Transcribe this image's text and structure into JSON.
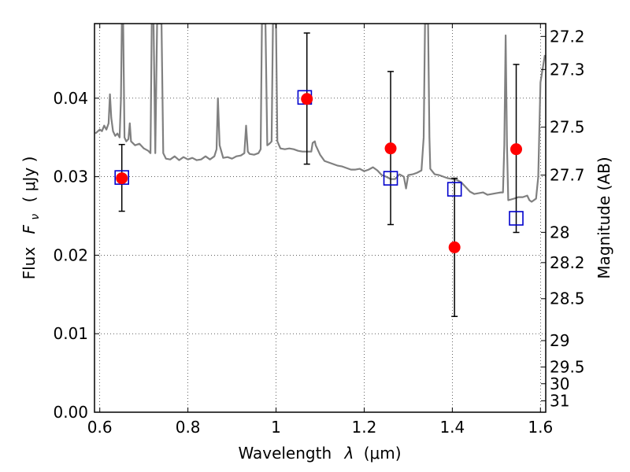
{
  "chart_data": {
    "type": "scatter",
    "xlabel_text": "Wavelength",
    "xlabel_symbol": "λ",
    "xlabel_unit": "(μm)",
    "ylabel_text": "Flux",
    "ylabel_symbol": "F",
    "ylabel_sub": "ν",
    "ylabel_unit": "( μJy )",
    "y2label": "Magnitude (AB)",
    "xlim": [
      0.588,
      1.612
    ],
    "ylim": [
      0.0,
      0.0495
    ],
    "grid": true,
    "x_ticks": [
      {
        "value": 0.6,
        "label": "0.6"
      },
      {
        "value": 0.8,
        "label": "0.8"
      },
      {
        "value": 1.0,
        "label": "1"
      },
      {
        "value": 1.2,
        "label": "1.2"
      },
      {
        "value": 1.4,
        "label": "1.4"
      },
      {
        "value": 1.6,
        "label": "1.6"
      }
    ],
    "y_ticks": [
      {
        "value": 0.0,
        "label": "0.00"
      },
      {
        "value": 0.01,
        "label": "0.01"
      },
      {
        "value": 0.02,
        "label": "0.02"
      },
      {
        "value": 0.03,
        "label": "0.03"
      },
      {
        "value": 0.04,
        "label": "0.04"
      }
    ],
    "mag_ticks": [
      {
        "mag": 27.2,
        "label": "27.2"
      },
      {
        "mag": 27.3,
        "label": "27.3"
      },
      {
        "mag": 27.5,
        "label": "27.5"
      },
      {
        "mag": 27.7,
        "label": "27.7"
      },
      {
        "mag": 28.0,
        "label": "28"
      },
      {
        "mag": 28.2,
        "label": "28.2"
      },
      {
        "mag": 28.5,
        "label": "28.5"
      },
      {
        "mag": 29.0,
        "label": "29"
      },
      {
        "mag": 29.5,
        "label": "29.5"
      },
      {
        "mag": 30.0,
        "label": "30"
      },
      {
        "mag": 31.0,
        "label": "31"
      }
    ],
    "observed": {
      "color": "#ff0000",
      "points": [
        {
          "x": 0.65,
          "y": 0.0298,
          "ylow": 0.0256,
          "yhigh": 0.0341
        },
        {
          "x": 1.07,
          "y": 0.0399,
          "ylow": 0.0316,
          "yhigh": 0.0483
        },
        {
          "x": 1.26,
          "y": 0.0336,
          "ylow": 0.0239,
          "yhigh": 0.0434
        },
        {
          "x": 1.405,
          "y": 0.021,
          "ylow": 0.0122,
          "yhigh": 0.0298
        },
        {
          "x": 1.545,
          "y": 0.0335,
          "ylow": 0.0229,
          "yhigh": 0.0443
        }
      ]
    },
    "model_points": {
      "color": "#0000cc",
      "points": [
        {
          "x": 0.65,
          "y": 0.0299
        },
        {
          "x": 1.065,
          "y": 0.0401
        },
        {
          "x": 1.26,
          "y": 0.0298
        },
        {
          "x": 1.405,
          "y": 0.0284
        },
        {
          "x": 1.545,
          "y": 0.0247
        }
      ]
    },
    "model_spectrum": {
      "color": "#808080",
      "points": [
        [
          0.59,
          0.0355
        ],
        [
          0.6,
          0.036
        ],
        [
          0.605,
          0.0358
        ],
        [
          0.61,
          0.0365
        ],
        [
          0.615,
          0.036
        ],
        [
          0.62,
          0.0368
        ],
        [
          0.623,
          0.0405
        ],
        [
          0.626,
          0.0375
        ],
        [
          0.63,
          0.0358
        ],
        [
          0.635,
          0.0352
        ],
        [
          0.64,
          0.0355
        ],
        [
          0.645,
          0.035
        ],
        [
          0.648,
          0.04
        ],
        [
          0.65,
          0.0495
        ],
        [
          0.653,
          0.0495
        ],
        [
          0.656,
          0.035
        ],
        [
          0.66,
          0.0345
        ],
        [
          0.665,
          0.0348
        ],
        [
          0.668,
          0.0368
        ],
        [
          0.671,
          0.0345
        ],
        [
          0.68,
          0.034
        ],
        [
          0.69,
          0.0342
        ],
        [
          0.7,
          0.0336
        ],
        [
          0.71,
          0.0333
        ],
        [
          0.715,
          0.033
        ],
        [
          0.718,
          0.0495
        ],
        [
          0.722,
          0.0495
        ],
        [
          0.726,
          0.033
        ],
        [
          0.73,
          0.0495
        ],
        [
          0.736,
          0.0495
        ],
        [
          0.74,
          0.0495
        ],
        [
          0.744,
          0.033
        ],
        [
          0.75,
          0.0323
        ],
        [
          0.76,
          0.0322
        ],
        [
          0.77,
          0.0326
        ],
        [
          0.78,
          0.0321
        ],
        [
          0.79,
          0.0325
        ],
        [
          0.8,
          0.0322
        ],
        [
          0.81,
          0.0324
        ],
        [
          0.82,
          0.0321
        ],
        [
          0.83,
          0.0322
        ],
        [
          0.84,
          0.0326
        ],
        [
          0.85,
          0.0322
        ],
        [
          0.86,
          0.0326
        ],
        [
          0.865,
          0.0335
        ],
        [
          0.868,
          0.04
        ],
        [
          0.872,
          0.034
        ],
        [
          0.88,
          0.0324
        ],
        [
          0.89,
          0.0325
        ],
        [
          0.9,
          0.0323
        ],
        [
          0.91,
          0.0326
        ],
        [
          0.92,
          0.0327
        ],
        [
          0.928,
          0.033
        ],
        [
          0.932,
          0.0365
        ],
        [
          0.936,
          0.0332
        ],
        [
          0.94,
          0.0329
        ],
        [
          0.95,
          0.0328
        ],
        [
          0.96,
          0.033
        ],
        [
          0.965,
          0.0335
        ],
        [
          0.968,
          0.0495
        ],
        [
          0.976,
          0.0495
        ],
        [
          0.98,
          0.034
        ],
        [
          0.985,
          0.0342
        ],
        [
          0.99,
          0.0345
        ],
        [
          0.993,
          0.0495
        ],
        [
          1.0,
          0.0495
        ],
        [
          1.003,
          0.0345
        ],
        [
          1.01,
          0.0336
        ],
        [
          1.02,
          0.0335
        ],
        [
          1.03,
          0.0336
        ],
        [
          1.04,
          0.0335
        ],
        [
          1.05,
          0.0333
        ],
        [
          1.06,
          0.0332
        ],
        [
          1.07,
          0.0332
        ],
        [
          1.08,
          0.0332
        ],
        [
          1.083,
          0.0343
        ],
        [
          1.088,
          0.0345
        ],
        [
          1.09,
          0.034
        ],
        [
          1.1,
          0.0328
        ],
        [
          1.11,
          0.032
        ],
        [
          1.12,
          0.0318
        ],
        [
          1.13,
          0.0316
        ],
        [
          1.14,
          0.0314
        ],
        [
          1.15,
          0.0313
        ],
        [
          1.16,
          0.0311
        ],
        [
          1.17,
          0.0309
        ],
        [
          1.18,
          0.0309
        ],
        [
          1.19,
          0.031
        ],
        [
          1.2,
          0.0307
        ],
        [
          1.21,
          0.0309
        ],
        [
          1.22,
          0.0312
        ],
        [
          1.23,
          0.0308
        ],
        [
          1.24,
          0.0302
        ],
        [
          1.25,
          0.03
        ],
        [
          1.26,
          0.0297
        ],
        [
          1.27,
          0.0297
        ],
        [
          1.28,
          0.0303
        ],
        [
          1.29,
          0.03
        ],
        [
          1.295,
          0.0285
        ],
        [
          1.3,
          0.0302
        ],
        [
          1.31,
          0.0303
        ],
        [
          1.32,
          0.0305
        ],
        [
          1.33,
          0.0308
        ],
        [
          1.335,
          0.035
        ],
        [
          1.338,
          0.0495
        ],
        [
          1.345,
          0.0495
        ],
        [
          1.348,
          0.035
        ],
        [
          1.35,
          0.031
        ],
        [
          1.36,
          0.0303
        ],
        [
          1.37,
          0.0302
        ],
        [
          1.38,
          0.03
        ],
        [
          1.39,
          0.0298
        ],
        [
          1.4,
          0.0297
        ],
        [
          1.41,
          0.0296
        ],
        [
          1.42,
          0.0293
        ],
        [
          1.43,
          0.0287
        ],
        [
          1.44,
          0.0281
        ],
        [
          1.45,
          0.0278
        ],
        [
          1.46,
          0.0279
        ],
        [
          1.47,
          0.028
        ],
        [
          1.48,
          0.0277
        ],
        [
          1.49,
          0.0278
        ],
        [
          1.5,
          0.0279
        ],
        [
          1.51,
          0.028
        ],
        [
          1.515,
          0.028
        ],
        [
          1.518,
          0.034
        ],
        [
          1.521,
          0.048
        ],
        [
          1.524,
          0.034
        ],
        [
          1.527,
          0.027
        ],
        [
          1.54,
          0.0272
        ],
        [
          1.55,
          0.0274
        ],
        [
          1.56,
          0.0274
        ],
        [
          1.57,
          0.0276
        ],
        [
          1.575,
          0.027
        ],
        [
          1.58,
          0.0268
        ],
        [
          1.59,
          0.0272
        ],
        [
          1.595,
          0.03
        ],
        [
          1.6,
          0.042
        ],
        [
          1.61,
          0.0455
        ]
      ]
    }
  }
}
